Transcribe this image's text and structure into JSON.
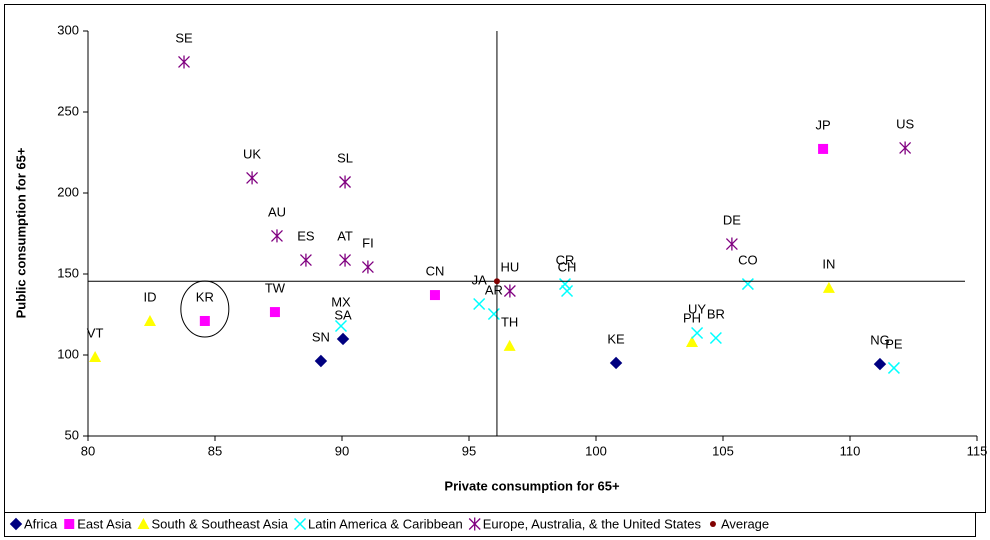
{
  "chart_data": {
    "type": "scatter",
    "x_label": "Private consumption for 65+",
    "y_label": "Public consumption for 65+",
    "xlim": [
      80,
      115
    ],
    "xticks": [
      80,
      85,
      90,
      95,
      100,
      105,
      110,
      115
    ],
    "ylim": [
      50,
      300
    ],
    "yticks": [
      50,
      100,
      150,
      200,
      250,
      300
    ],
    "series": [
      {
        "name": "Africa",
        "color": "#000080",
        "marker": "diamond",
        "labels": [
          "SN",
          "SA",
          "KE",
          "NG"
        ],
        "x": [
          89.17,
          90.04,
          100.79,
          111.18
        ],
        "values": [
          96.3,
          109.9,
          95.1,
          94.4
        ]
      },
      {
        "name": "East Asia",
        "color": "#ff00ff",
        "marker": "square",
        "labels": [
          "KR",
          "TW",
          "CN",
          "JP"
        ],
        "x": [
          84.6,
          87.36,
          93.66,
          108.94
        ],
        "values": [
          121,
          126.5,
          137,
          227.2
        ]
      },
      {
        "name": "South & Southeast Asia",
        "color": "#ffff00",
        "marker": "triangle",
        "labels": [
          "VT",
          "ID",
          "TH",
          "PH",
          "IN"
        ],
        "x": [
          80.28,
          82.44,
          96.6,
          103.78,
          109.17
        ],
        "values": [
          98.8,
          121,
          105.6,
          108,
          141.4
        ]
      },
      {
        "name": "Latin America & Caribbean",
        "color": "#00ffff",
        "marker": "x",
        "labels": [
          "MX",
          "JA",
          "AR",
          "CR",
          "CH",
          "UY",
          "BR",
          "CO",
          "PE"
        ],
        "x": [
          89.96,
          95.4,
          95.98,
          98.78,
          98.86,
          103.98,
          104.72,
          105.98,
          111.73
        ],
        "values": [
          117.9,
          131.5,
          125.3,
          143.8,
          139.5,
          113.6,
          110.5,
          143.8,
          92
        ]
      },
      {
        "name": "Europe, Australia, & the United States",
        "color": "#800080",
        "marker": "asterisk",
        "labels": [
          "SE",
          "UK",
          "AU",
          "ES",
          "AT",
          "FI",
          "SL",
          "HU",
          "DE",
          "US"
        ],
        "x": [
          83.78,
          86.46,
          87.44,
          88.58,
          90.12,
          91.02,
          90.12,
          96.61,
          105.35,
          112.17
        ],
        "values": [
          280.9,
          209.3,
          173.5,
          158.6,
          158.6,
          154.3,
          206.8,
          139.5,
          168.5,
          227.8
        ]
      },
      {
        "name": "Average",
        "color": "#800000",
        "marker": "circle",
        "x": [
          96.1
        ],
        "values": [
          145.5
        ]
      }
    ],
    "highlight": "KR"
  }
}
